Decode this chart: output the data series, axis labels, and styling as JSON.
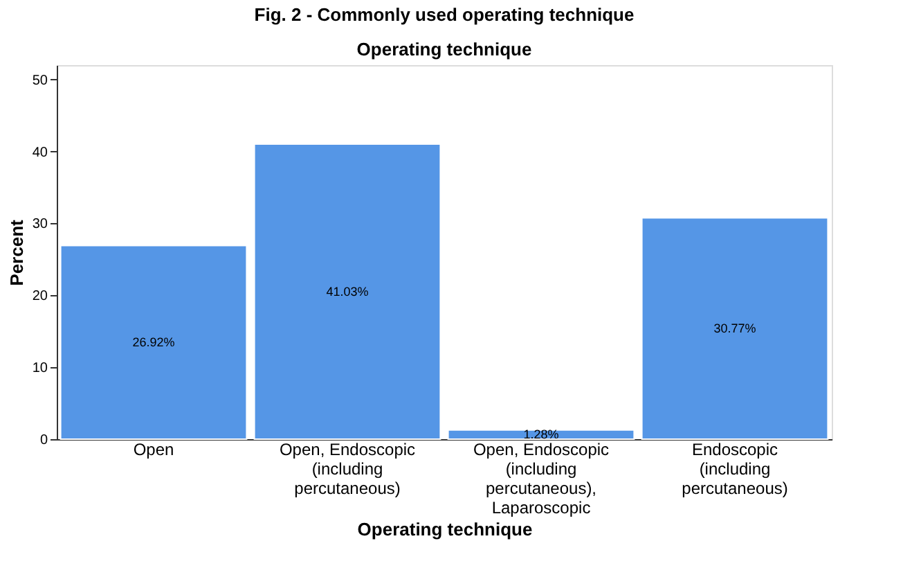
{
  "chart_data": {
    "type": "bar",
    "title": "Fig. 2 - Commonly used operating technique",
    "subtitle": "Operating technique",
    "xlabel": "Operating technique",
    "ylabel": "Percent",
    "categories": [
      "Open",
      "Open, Endoscopic (including percutaneous)",
      "Open, Endoscopic (including percutaneous), Laparoscopic",
      "Endoscopic (including percutaneous)"
    ],
    "values": [
      26.92,
      41.03,
      1.28,
      30.77
    ],
    "value_labels": [
      "26.92%",
      "41.03%",
      "1.28%",
      "30.77%"
    ],
    "color": "#5596e6",
    "ylim": [
      0,
      52
    ],
    "yticks": [
      0,
      10,
      20,
      30,
      40,
      50
    ],
    "grid": false
  }
}
